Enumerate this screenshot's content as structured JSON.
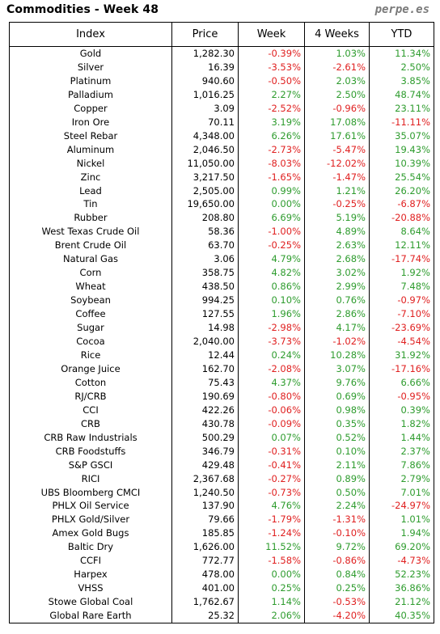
{
  "header": {
    "title": "Commodities - Week 48",
    "brand": "perpe.es"
  },
  "columns": [
    "Index",
    "Price",
    "Week",
    "4 Weeks",
    "YTD"
  ],
  "rows": [
    {
      "index": "Gold",
      "price": "1,282.30",
      "week": "-0.39%",
      "four_weeks": "1.03%",
      "ytd": "11.34%"
    },
    {
      "index": "Silver",
      "price": "16.39",
      "week": "-3.53%",
      "four_weeks": "-2.61%",
      "ytd": "2.50%"
    },
    {
      "index": "Platinum",
      "price": "940.60",
      "week": "-0.50%",
      "four_weeks": "2.03%",
      "ytd": "3.85%"
    },
    {
      "index": "Palladium",
      "price": "1,016.25",
      "week": "2.27%",
      "four_weeks": "2.50%",
      "ytd": "48.74%"
    },
    {
      "index": "Copper",
      "price": "3.09",
      "week": "-2.52%",
      "four_weeks": "-0.96%",
      "ytd": "23.11%"
    },
    {
      "index": "Iron Ore",
      "price": "70.11",
      "week": "3.19%",
      "four_weeks": "17.08%",
      "ytd": "-11.11%"
    },
    {
      "index": "Steel Rebar",
      "price": "4,348.00",
      "week": "6.26%",
      "four_weeks": "17.61%",
      "ytd": "35.07%"
    },
    {
      "index": "Aluminum",
      "price": "2,046.50",
      "week": "-2.73%",
      "four_weeks": "-5.47%",
      "ytd": "19.43%"
    },
    {
      "index": "Nickel",
      "price": "11,050.00",
      "week": "-8.03%",
      "four_weeks": "-12.02%",
      "ytd": "10.39%"
    },
    {
      "index": "Zinc",
      "price": "3,217.50",
      "week": "-1.65%",
      "four_weeks": "-1.47%",
      "ytd": "25.54%"
    },
    {
      "index": "Lead",
      "price": "2,505.00",
      "week": "0.99%",
      "four_weeks": "1.21%",
      "ytd": "26.20%"
    },
    {
      "index": "Tin",
      "price": "19,650.00",
      "week": "0.00%",
      "four_weeks": "-0.25%",
      "ytd": "-6.87%"
    },
    {
      "index": "Rubber",
      "price": "208.80",
      "week": "6.69%",
      "four_weeks": "5.19%",
      "ytd": "-20.88%"
    },
    {
      "index": "West Texas Crude Oil",
      "price": "58.36",
      "week": "-1.00%",
      "four_weeks": "4.89%",
      "ytd": "8.64%"
    },
    {
      "index": "Brent Crude Oil",
      "price": "63.70",
      "week": "-0.25%",
      "four_weeks": "2.63%",
      "ytd": "12.11%"
    },
    {
      "index": "Natural Gas",
      "price": "3.06",
      "week": "4.79%",
      "four_weeks": "2.68%",
      "ytd": "-17.74%"
    },
    {
      "index": "Corn",
      "price": "358.75",
      "week": "4.82%",
      "four_weeks": "3.02%",
      "ytd": "1.92%"
    },
    {
      "index": "Wheat",
      "price": "438.50",
      "week": "0.86%",
      "four_weeks": "2.99%",
      "ytd": "7.48%"
    },
    {
      "index": "Soybean",
      "price": "994.25",
      "week": "0.10%",
      "four_weeks": "0.76%",
      "ytd": "-0.97%"
    },
    {
      "index": "Coffee",
      "price": "127.55",
      "week": "1.96%",
      "four_weeks": "2.86%",
      "ytd": "-7.10%"
    },
    {
      "index": "Sugar",
      "price": "14.98",
      "week": "-2.98%",
      "four_weeks": "4.17%",
      "ytd": "-23.69%"
    },
    {
      "index": "Cocoa",
      "price": "2,040.00",
      "week": "-3.73%",
      "four_weeks": "-1.02%",
      "ytd": "-4.54%"
    },
    {
      "index": "Rice",
      "price": "12.44",
      "week": "0.24%",
      "four_weeks": "10.28%",
      "ytd": "31.92%"
    },
    {
      "index": "Orange Juice",
      "price": "162.70",
      "week": "-2.08%",
      "four_weeks": "3.07%",
      "ytd": "-17.16%"
    },
    {
      "index": "Cotton",
      "price": "75.43",
      "week": "4.37%",
      "four_weeks": "9.76%",
      "ytd": "6.66%"
    },
    {
      "index": "RJ/CRB",
      "price": "190.69",
      "week": "-0.80%",
      "four_weeks": "0.69%",
      "ytd": "-0.95%"
    },
    {
      "index": "CCI",
      "price": "422.26",
      "week": "-0.06%",
      "four_weeks": "0.98%",
      "ytd": "0.39%"
    },
    {
      "index": "CRB",
      "price": "430.78",
      "week": "-0.09%",
      "four_weeks": "0.35%",
      "ytd": "1.82%"
    },
    {
      "index": "CRB Raw Industrials",
      "price": "500.29",
      "week": "0.07%",
      "four_weeks": "0.52%",
      "ytd": "1.44%"
    },
    {
      "index": "CRB Foodstuffs",
      "price": "346.79",
      "week": "-0.31%",
      "four_weeks": "0.10%",
      "ytd": "2.37%"
    },
    {
      "index": "S&P GSCI",
      "price": "429.48",
      "week": "-0.41%",
      "four_weeks": "2.11%",
      "ytd": "7.86%"
    },
    {
      "index": "RICI",
      "price": "2,367.68",
      "week": "-0.27%",
      "four_weeks": "0.89%",
      "ytd": "2.79%"
    },
    {
      "index": "UBS Bloomberg CMCI",
      "price": "1,240.50",
      "week": "-0.73%",
      "four_weeks": "0.50%",
      "ytd": "7.01%"
    },
    {
      "index": "PHLX Oil Service",
      "price": "137.90",
      "week": "4.76%",
      "four_weeks": "2.24%",
      "ytd": "-24.97%"
    },
    {
      "index": "PHLX Gold/Silver",
      "price": "79.66",
      "week": "-1.79%",
      "four_weeks": "-1.31%",
      "ytd": "1.01%"
    },
    {
      "index": "Amex Gold Bugs",
      "price": "185.85",
      "week": "-1.24%",
      "four_weeks": "-0.10%",
      "ytd": "1.94%"
    },
    {
      "index": "Baltic Dry",
      "price": "1,626.00",
      "week": "11.52%",
      "four_weeks": "9.72%",
      "ytd": "69.20%"
    },
    {
      "index": "CCFI",
      "price": "772.77",
      "week": "-1.58%",
      "four_weeks": "-0.86%",
      "ytd": "-4.73%"
    },
    {
      "index": "Harpex",
      "price": "478.00",
      "week": "0.00%",
      "four_weeks": "0.84%",
      "ytd": "52.23%"
    },
    {
      "index": "VHSS",
      "price": "401.00",
      "week": "0.25%",
      "four_weeks": "0.25%",
      "ytd": "36.86%"
    },
    {
      "index": "Stowe Global Coal",
      "price": "1,762.67",
      "week": "1.14%",
      "four_weeks": "-0.53%",
      "ytd": "21.12%"
    },
    {
      "index": "Global Rare Earth",
      "price": "25.32",
      "week": "2.06%",
      "four_weeks": "-4.20%",
      "ytd": "40.35%"
    }
  ],
  "colors": {
    "positive": "#2e9c2e",
    "negative": "#e02020",
    "brand": "#7a7a7a"
  }
}
